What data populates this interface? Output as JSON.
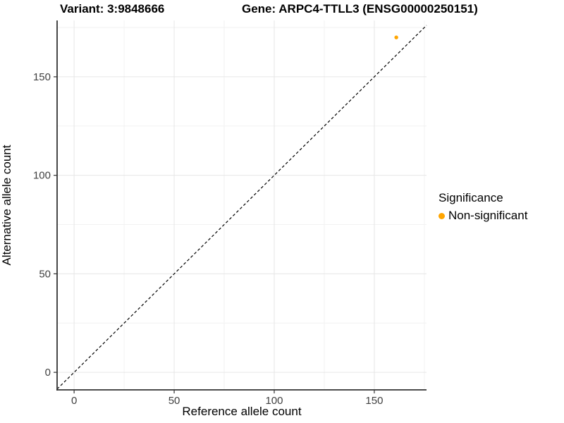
{
  "titles": {
    "left": "Variant: 3:9848666",
    "right": "Gene: ARPC4-TTLL3 (ENSG00000250151)"
  },
  "chart_data": {
    "type": "scatter",
    "xlabel": "Reference allele count",
    "ylabel": "Alternative allele count",
    "x_ticks": [
      0,
      50,
      100,
      150
    ],
    "y_ticks": [
      0,
      50,
      100,
      150
    ],
    "x_minor_ticks": [
      25,
      75,
      125,
      175
    ],
    "y_minor_ticks": [
      25,
      75,
      125,
      175
    ],
    "xlim": [
      -8.5,
      176.1
    ],
    "ylim": [
      -8.9,
      178.6
    ],
    "grid": {
      "major_color": "#E6E6E6",
      "minor_color": "#F2F2F2",
      "background": "#FFFFFF"
    },
    "axis_color": "#333333",
    "tick_label_color": "#404040",
    "reference_line": {
      "kind": "identity",
      "equation": "y = x",
      "style": "dashed",
      "color": "#000000"
    },
    "series": [
      {
        "name": "Non-significant",
        "color": "#FFA500",
        "points": [
          {
            "x": 161,
            "y": 170
          }
        ]
      }
    ],
    "legend": {
      "title": "Significance",
      "position": "right",
      "entries": [
        {
          "label": "Non-significant",
          "color": "#FFA500"
        }
      ]
    }
  }
}
